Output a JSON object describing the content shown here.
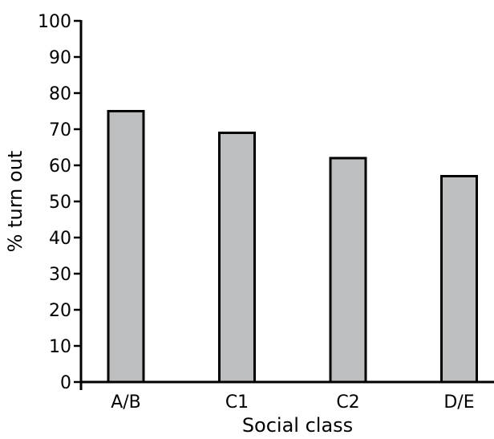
{
  "chart_data": {
    "type": "bar",
    "categories": [
      "A/B",
      "C1",
      "C2",
      "D/E"
    ],
    "values": [
      75,
      69,
      62,
      57
    ],
    "xlabel": "Social class",
    "ylabel": "% turn out",
    "ylim": [
      0,
      100
    ],
    "yticks": [
      0,
      10,
      20,
      30,
      40,
      50,
      60,
      70,
      80,
      90,
      100
    ],
    "grid": false,
    "bar_color": "#bcbec0"
  }
}
